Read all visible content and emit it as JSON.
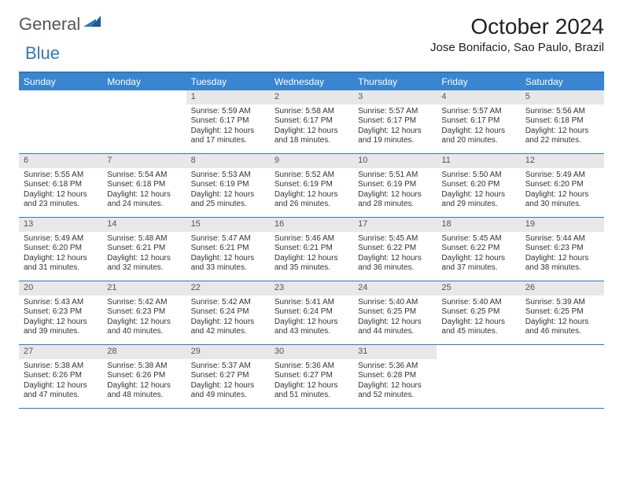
{
  "brand": {
    "part1": "General",
    "part2": "Blue"
  },
  "title": "October 2024",
  "location": "Jose Bonifacio, Sao Paulo, Brazil",
  "colors": {
    "header_bar": "#3a85cf",
    "border": "#2e78c2",
    "daynum_bg": "#e8e8e8",
    "text": "#222222",
    "brand_blue": "#2e78c2",
    "brand_gray": "#555555"
  },
  "days_of_week": [
    "Sunday",
    "Monday",
    "Tuesday",
    "Wednesday",
    "Thursday",
    "Friday",
    "Saturday"
  ],
  "weeks": [
    [
      null,
      null,
      {
        "n": "1",
        "sr": "Sunrise: 5:59 AM",
        "ss": "Sunset: 6:17 PM",
        "dl": "Daylight: 12 hours and 17 minutes."
      },
      {
        "n": "2",
        "sr": "Sunrise: 5:58 AM",
        "ss": "Sunset: 6:17 PM",
        "dl": "Daylight: 12 hours and 18 minutes."
      },
      {
        "n": "3",
        "sr": "Sunrise: 5:57 AM",
        "ss": "Sunset: 6:17 PM",
        "dl": "Daylight: 12 hours and 19 minutes."
      },
      {
        "n": "4",
        "sr": "Sunrise: 5:57 AM",
        "ss": "Sunset: 6:17 PM",
        "dl": "Daylight: 12 hours and 20 minutes."
      },
      {
        "n": "5",
        "sr": "Sunrise: 5:56 AM",
        "ss": "Sunset: 6:18 PM",
        "dl": "Daylight: 12 hours and 22 minutes."
      }
    ],
    [
      {
        "n": "6",
        "sr": "Sunrise: 5:55 AM",
        "ss": "Sunset: 6:18 PM",
        "dl": "Daylight: 12 hours and 23 minutes."
      },
      {
        "n": "7",
        "sr": "Sunrise: 5:54 AM",
        "ss": "Sunset: 6:18 PM",
        "dl": "Daylight: 12 hours and 24 minutes."
      },
      {
        "n": "8",
        "sr": "Sunrise: 5:53 AM",
        "ss": "Sunset: 6:19 PM",
        "dl": "Daylight: 12 hours and 25 minutes."
      },
      {
        "n": "9",
        "sr": "Sunrise: 5:52 AM",
        "ss": "Sunset: 6:19 PM",
        "dl": "Daylight: 12 hours and 26 minutes."
      },
      {
        "n": "10",
        "sr": "Sunrise: 5:51 AM",
        "ss": "Sunset: 6:19 PM",
        "dl": "Daylight: 12 hours and 28 minutes."
      },
      {
        "n": "11",
        "sr": "Sunrise: 5:50 AM",
        "ss": "Sunset: 6:20 PM",
        "dl": "Daylight: 12 hours and 29 minutes."
      },
      {
        "n": "12",
        "sr": "Sunrise: 5:49 AM",
        "ss": "Sunset: 6:20 PM",
        "dl": "Daylight: 12 hours and 30 minutes."
      }
    ],
    [
      {
        "n": "13",
        "sr": "Sunrise: 5:49 AM",
        "ss": "Sunset: 6:20 PM",
        "dl": "Daylight: 12 hours and 31 minutes."
      },
      {
        "n": "14",
        "sr": "Sunrise: 5:48 AM",
        "ss": "Sunset: 6:21 PM",
        "dl": "Daylight: 12 hours and 32 minutes."
      },
      {
        "n": "15",
        "sr": "Sunrise: 5:47 AM",
        "ss": "Sunset: 6:21 PM",
        "dl": "Daylight: 12 hours and 33 minutes."
      },
      {
        "n": "16",
        "sr": "Sunrise: 5:46 AM",
        "ss": "Sunset: 6:21 PM",
        "dl": "Daylight: 12 hours and 35 minutes."
      },
      {
        "n": "17",
        "sr": "Sunrise: 5:45 AM",
        "ss": "Sunset: 6:22 PM",
        "dl": "Daylight: 12 hours and 36 minutes."
      },
      {
        "n": "18",
        "sr": "Sunrise: 5:45 AM",
        "ss": "Sunset: 6:22 PM",
        "dl": "Daylight: 12 hours and 37 minutes."
      },
      {
        "n": "19",
        "sr": "Sunrise: 5:44 AM",
        "ss": "Sunset: 6:23 PM",
        "dl": "Daylight: 12 hours and 38 minutes."
      }
    ],
    [
      {
        "n": "20",
        "sr": "Sunrise: 5:43 AM",
        "ss": "Sunset: 6:23 PM",
        "dl": "Daylight: 12 hours and 39 minutes."
      },
      {
        "n": "21",
        "sr": "Sunrise: 5:42 AM",
        "ss": "Sunset: 6:23 PM",
        "dl": "Daylight: 12 hours and 40 minutes."
      },
      {
        "n": "22",
        "sr": "Sunrise: 5:42 AM",
        "ss": "Sunset: 6:24 PM",
        "dl": "Daylight: 12 hours and 42 minutes."
      },
      {
        "n": "23",
        "sr": "Sunrise: 5:41 AM",
        "ss": "Sunset: 6:24 PM",
        "dl": "Daylight: 12 hours and 43 minutes."
      },
      {
        "n": "24",
        "sr": "Sunrise: 5:40 AM",
        "ss": "Sunset: 6:25 PM",
        "dl": "Daylight: 12 hours and 44 minutes."
      },
      {
        "n": "25",
        "sr": "Sunrise: 5:40 AM",
        "ss": "Sunset: 6:25 PM",
        "dl": "Daylight: 12 hours and 45 minutes."
      },
      {
        "n": "26",
        "sr": "Sunrise: 5:39 AM",
        "ss": "Sunset: 6:25 PM",
        "dl": "Daylight: 12 hours and 46 minutes."
      }
    ],
    [
      {
        "n": "27",
        "sr": "Sunrise: 5:38 AM",
        "ss": "Sunset: 6:26 PM",
        "dl": "Daylight: 12 hours and 47 minutes."
      },
      {
        "n": "28",
        "sr": "Sunrise: 5:38 AM",
        "ss": "Sunset: 6:26 PM",
        "dl": "Daylight: 12 hours and 48 minutes."
      },
      {
        "n": "29",
        "sr": "Sunrise: 5:37 AM",
        "ss": "Sunset: 6:27 PM",
        "dl": "Daylight: 12 hours and 49 minutes."
      },
      {
        "n": "30",
        "sr": "Sunrise: 5:36 AM",
        "ss": "Sunset: 6:27 PM",
        "dl": "Daylight: 12 hours and 51 minutes."
      },
      {
        "n": "31",
        "sr": "Sunrise: 5:36 AM",
        "ss": "Sunset: 6:28 PM",
        "dl": "Daylight: 12 hours and 52 minutes."
      },
      null,
      null
    ]
  ]
}
